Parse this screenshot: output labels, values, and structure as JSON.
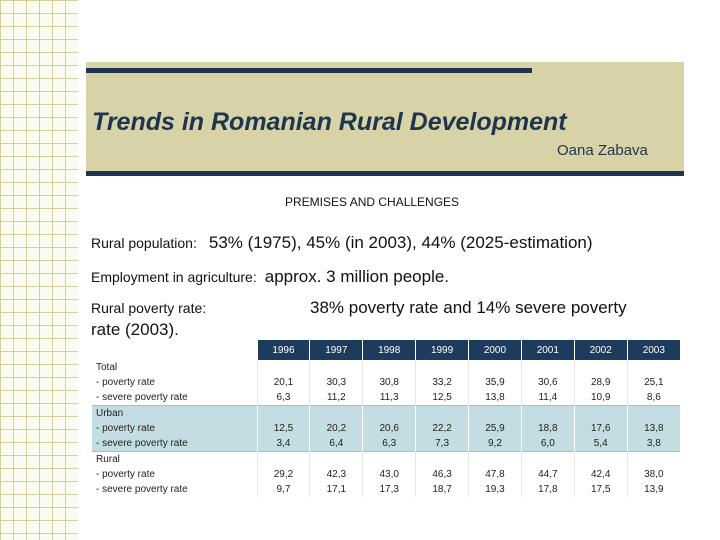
{
  "title": "Trends in Romanian Rural Development",
  "author": "Oana Zabava",
  "section": "PREMISES AND CHALLENGES",
  "facts": {
    "rural_population": {
      "label": "Rural population:",
      "value": "53% (1975), 45% (in 2003), 44% (2025-estimation)"
    },
    "employment": {
      "label": "Employment in agriculture:",
      "value": "approx. 3 million people."
    },
    "poverty": {
      "label": "Rural poverty rate:",
      "value": "38% poverty rate and 14% severe poverty",
      "value_cont": "rate (2003)."
    }
  },
  "table": {
    "years": [
      "1996",
      "1997",
      "1998",
      "1999",
      "2000",
      "2001",
      "2002",
      "2003"
    ],
    "groups": [
      {
        "name": "Total",
        "rows": [
          {
            "label": "- poverty rate",
            "values": [
              "20,1",
              "30,3",
              "30,8",
              "33,2",
              "35,9",
              "30,6",
              "28,9",
              "25,1"
            ]
          },
          {
            "label": "- severe poverty rate",
            "values": [
              "6,3",
              "11,2",
              "11,3",
              "12,5",
              "13,8",
              "11,4",
              "10,9",
              "8,6"
            ]
          }
        ]
      },
      {
        "name": "Urban",
        "rows": [
          {
            "label": "- poverty rate",
            "values": [
              "12,5",
              "20,2",
              "20,6",
              "22,2",
              "25,9",
              "18,8",
              "17,6",
              "13,8"
            ]
          },
          {
            "label": "- severe poverty rate",
            "values": [
              "3,4",
              "6,4",
              "6,3",
              "7,3",
              "9,2",
              "6,0",
              "5,4",
              "3,8"
            ]
          }
        ]
      },
      {
        "name": "Rural",
        "rows": [
          {
            "label": "- poverty rate",
            "values": [
              "29,2",
              "42,3",
              "43,0",
              "46,3",
              "47,8",
              "44,7",
              "42,4",
              "38,0"
            ]
          },
          {
            "label": "- severe poverty rate",
            "values": [
              "9,7",
              "17,1",
              "17,3",
              "18,7",
              "19,3",
              "17,8",
              "17,5",
              "13,9"
            ]
          }
        ]
      }
    ]
  },
  "colors": {
    "accent": "#1d3550",
    "band": "#d7d3a6",
    "table_header": "#1d3b5c",
    "urban_highlight": "#c4dde2"
  }
}
